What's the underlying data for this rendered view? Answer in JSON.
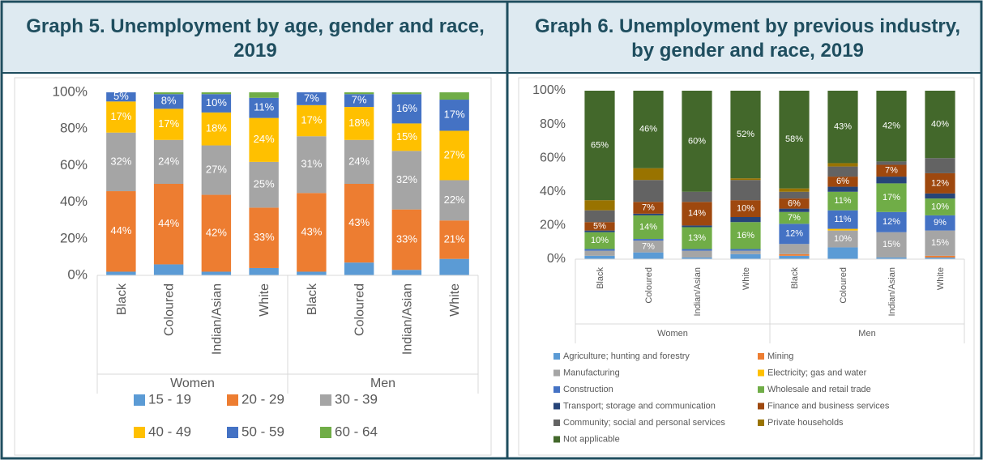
{
  "chart_data": [
    {
      "type": "stacked_bar",
      "title": "Graph 5. Unemployment by age, gender and race, 2019",
      "groups": [
        "Women",
        "Men"
      ],
      "categories": [
        "Black",
        "Coloured",
        "Indian/Asian",
        "White",
        "Black",
        "Coloured",
        "Indian/Asian",
        "White"
      ],
      "ylim": [
        0,
        100
      ],
      "yticks": [
        {
          "value": 0,
          "label": "0%"
        },
        {
          "value": 20,
          "label": "20%"
        },
        {
          "value": 40,
          "label": "40%"
        },
        {
          "value": 60,
          "label": "60%"
        },
        {
          "value": 80,
          "label": "80%"
        },
        {
          "value": 100,
          "label": "100%"
        }
      ],
      "grid": false,
      "series": [
        {
          "name": "15 - 19",
          "color": "#5b9bd5",
          "values": [
            2,
            6,
            2,
            4,
            2,
            7,
            3,
            9
          ],
          "value_labels": [
            null,
            null,
            null,
            null,
            null,
            null,
            null,
            null
          ]
        },
        {
          "name": "20 - 29",
          "color": "#ed7d31",
          "values": [
            44,
            44,
            42,
            33,
            43,
            43,
            33,
            21
          ],
          "value_labels": [
            "44%",
            "44%",
            "42%",
            "33%",
            "43%",
            "43%",
            "33%",
            "21%"
          ]
        },
        {
          "name": "30 - 39",
          "color": "#a5a5a5",
          "values": [
            32,
            24,
            27,
            25,
            31,
            24,
            32,
            22
          ],
          "value_labels": [
            "32%",
            "24%",
            "27%",
            "25%",
            "31%",
            "24%",
            "32%",
            "22%"
          ]
        },
        {
          "name": "40 - 49",
          "color": "#ffc000",
          "values": [
            17,
            17,
            18,
            24,
            17,
            18,
            15,
            27
          ],
          "value_labels": [
            "17%",
            "17%",
            "18%",
            "24%",
            "17%",
            "18%",
            "15%",
            "27%"
          ]
        },
        {
          "name": "50 - 59",
          "color": "#4472c4",
          "values": [
            5,
            8,
            10,
            11,
            7,
            7,
            16,
            17
          ],
          "value_labels": [
            "5%",
            "8%",
            "10%",
            "11%",
            "7%",
            "7%",
            "16%",
            "17%"
          ]
        },
        {
          "name": "60 - 64",
          "color": "#70ad47",
          "values": [
            0,
            1,
            1,
            3,
            0,
            1,
            1,
            4
          ],
          "value_labels": [
            null,
            null,
            null,
            null,
            null,
            null,
            null,
            null
          ]
        }
      ]
    },
    {
      "type": "stacked_bar",
      "title": "Graph 6. Unemployment by previous industry, by gender and race, 2019",
      "groups": [
        "Women",
        "Men"
      ],
      "categories": [
        "Black",
        "Coloured",
        "Indian/Asian",
        "White",
        "Black",
        "Coloured",
        "Indian/Asian",
        "White"
      ],
      "ylim": [
        0,
        100
      ],
      "yticks": [
        {
          "value": 0,
          "label": "0%"
        },
        {
          "value": 20,
          "label": "20%"
        },
        {
          "value": 40,
          "label": "40%"
        },
        {
          "value": 60,
          "label": "60%"
        },
        {
          "value": 80,
          "label": "80%"
        },
        {
          "value": 100,
          "label": "100%"
        }
      ],
      "grid": false,
      "series": [
        {
          "name": "Agriculture; hunting and forestry",
          "color": "#5b9bd5",
          "values": [
            2,
            4,
            1,
            3,
            2,
            7,
            1,
            1
          ],
          "value_labels": [
            null,
            null,
            null,
            null,
            null,
            null,
            null,
            null
          ]
        },
        {
          "name": "Mining",
          "color": "#ed7d31",
          "values": [
            0,
            0,
            0,
            0,
            1,
            0,
            0,
            1
          ],
          "value_labels": [
            null,
            null,
            null,
            null,
            null,
            null,
            null,
            null
          ]
        },
        {
          "name": "Manufacturing",
          "color": "#a5a5a5",
          "values": [
            3,
            7,
            4,
            2,
            6,
            10,
            15,
            15
          ],
          "value_labels": [
            null,
            "7%",
            null,
            null,
            null,
            "10%",
            "15%",
            "15%"
          ]
        },
        {
          "name": "Electricity; gas and water",
          "color": "#ffc000",
          "values": [
            0,
            0,
            0,
            0,
            0,
            1,
            0,
            0
          ],
          "value_labels": [
            null,
            null,
            null,
            null,
            null,
            null,
            null,
            null
          ]
        },
        {
          "name": "Construction",
          "color": "#4472c4",
          "values": [
            1,
            1,
            1,
            1,
            12,
            11,
            12,
            9
          ],
          "value_labels": [
            null,
            null,
            null,
            null,
            "12%",
            "11%",
            "12%",
            "9%"
          ]
        },
        {
          "name": "Wholesale and retail trade",
          "color": "#70ad47",
          "values": [
            10,
            14,
            13,
            16,
            7,
            11,
            17,
            10
          ],
          "value_labels": [
            "10%",
            "14%",
            "13%",
            "16%",
            "7%",
            "11%",
            "17%",
            "10%"
          ]
        },
        {
          "name": "Transport; storage and communication",
          "color": "#264478",
          "values": [
            1,
            1,
            1,
            3,
            2,
            3,
            4,
            3
          ],
          "value_labels": [
            null,
            null,
            null,
            null,
            null,
            null,
            null,
            null
          ]
        },
        {
          "name": "Finance and business services",
          "color": "#9e480e",
          "values": [
            5,
            7,
            14,
            10,
            6,
            6,
            7,
            12
          ],
          "value_labels": [
            "5%",
            "7%",
            "14%",
            "10%",
            "6%",
            "6%",
            "7%",
            "12%"
          ]
        },
        {
          "name": "Community; social and personal services",
          "color": "#636363",
          "values": [
            7,
            13,
            6,
            12,
            4,
            6,
            2,
            9
          ],
          "value_labels": [
            null,
            null,
            null,
            null,
            null,
            null,
            null,
            null
          ]
        },
        {
          "name": "Private households",
          "color": "#997300",
          "values": [
            6,
            7,
            0,
            1,
            2,
            2,
            0,
            0
          ],
          "value_labels": [
            null,
            null,
            null,
            null,
            null,
            null,
            null,
            null
          ]
        },
        {
          "name": "Not applicable",
          "color": "#43682b",
          "values": [
            65,
            46,
            60,
            52,
            58,
            43,
            42,
            40
          ],
          "value_labels": [
            "65%",
            "46%",
            "60%",
            "52%",
            "58%",
            "43%",
            "42%",
            "40%"
          ]
        }
      ]
    }
  ]
}
